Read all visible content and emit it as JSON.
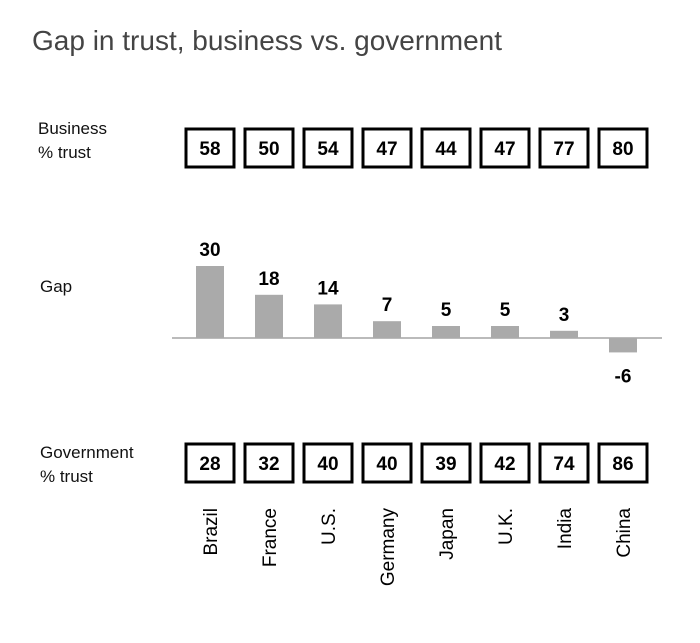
{
  "chart_data": {
    "type": "bar",
    "title": "Gap in trust, business vs. government",
    "categories": [
      "Brazil",
      "France",
      "U.S.",
      "Germany",
      "Japan",
      "U.K.",
      "India",
      "China"
    ],
    "values": [
      30,
      18,
      14,
      7,
      5,
      5,
      3,
      -6
    ],
    "color": "#aaaaaa",
    "value_axis_label": "Gap",
    "business_label": "Business % trust",
    "business_trust": [
      58,
      50,
      54,
      47,
      44,
      47,
      77,
      80
    ],
    "government_label": "Government % trust",
    "government_trust": [
      28,
      32,
      40,
      40,
      39,
      42,
      74,
      86
    ]
  }
}
